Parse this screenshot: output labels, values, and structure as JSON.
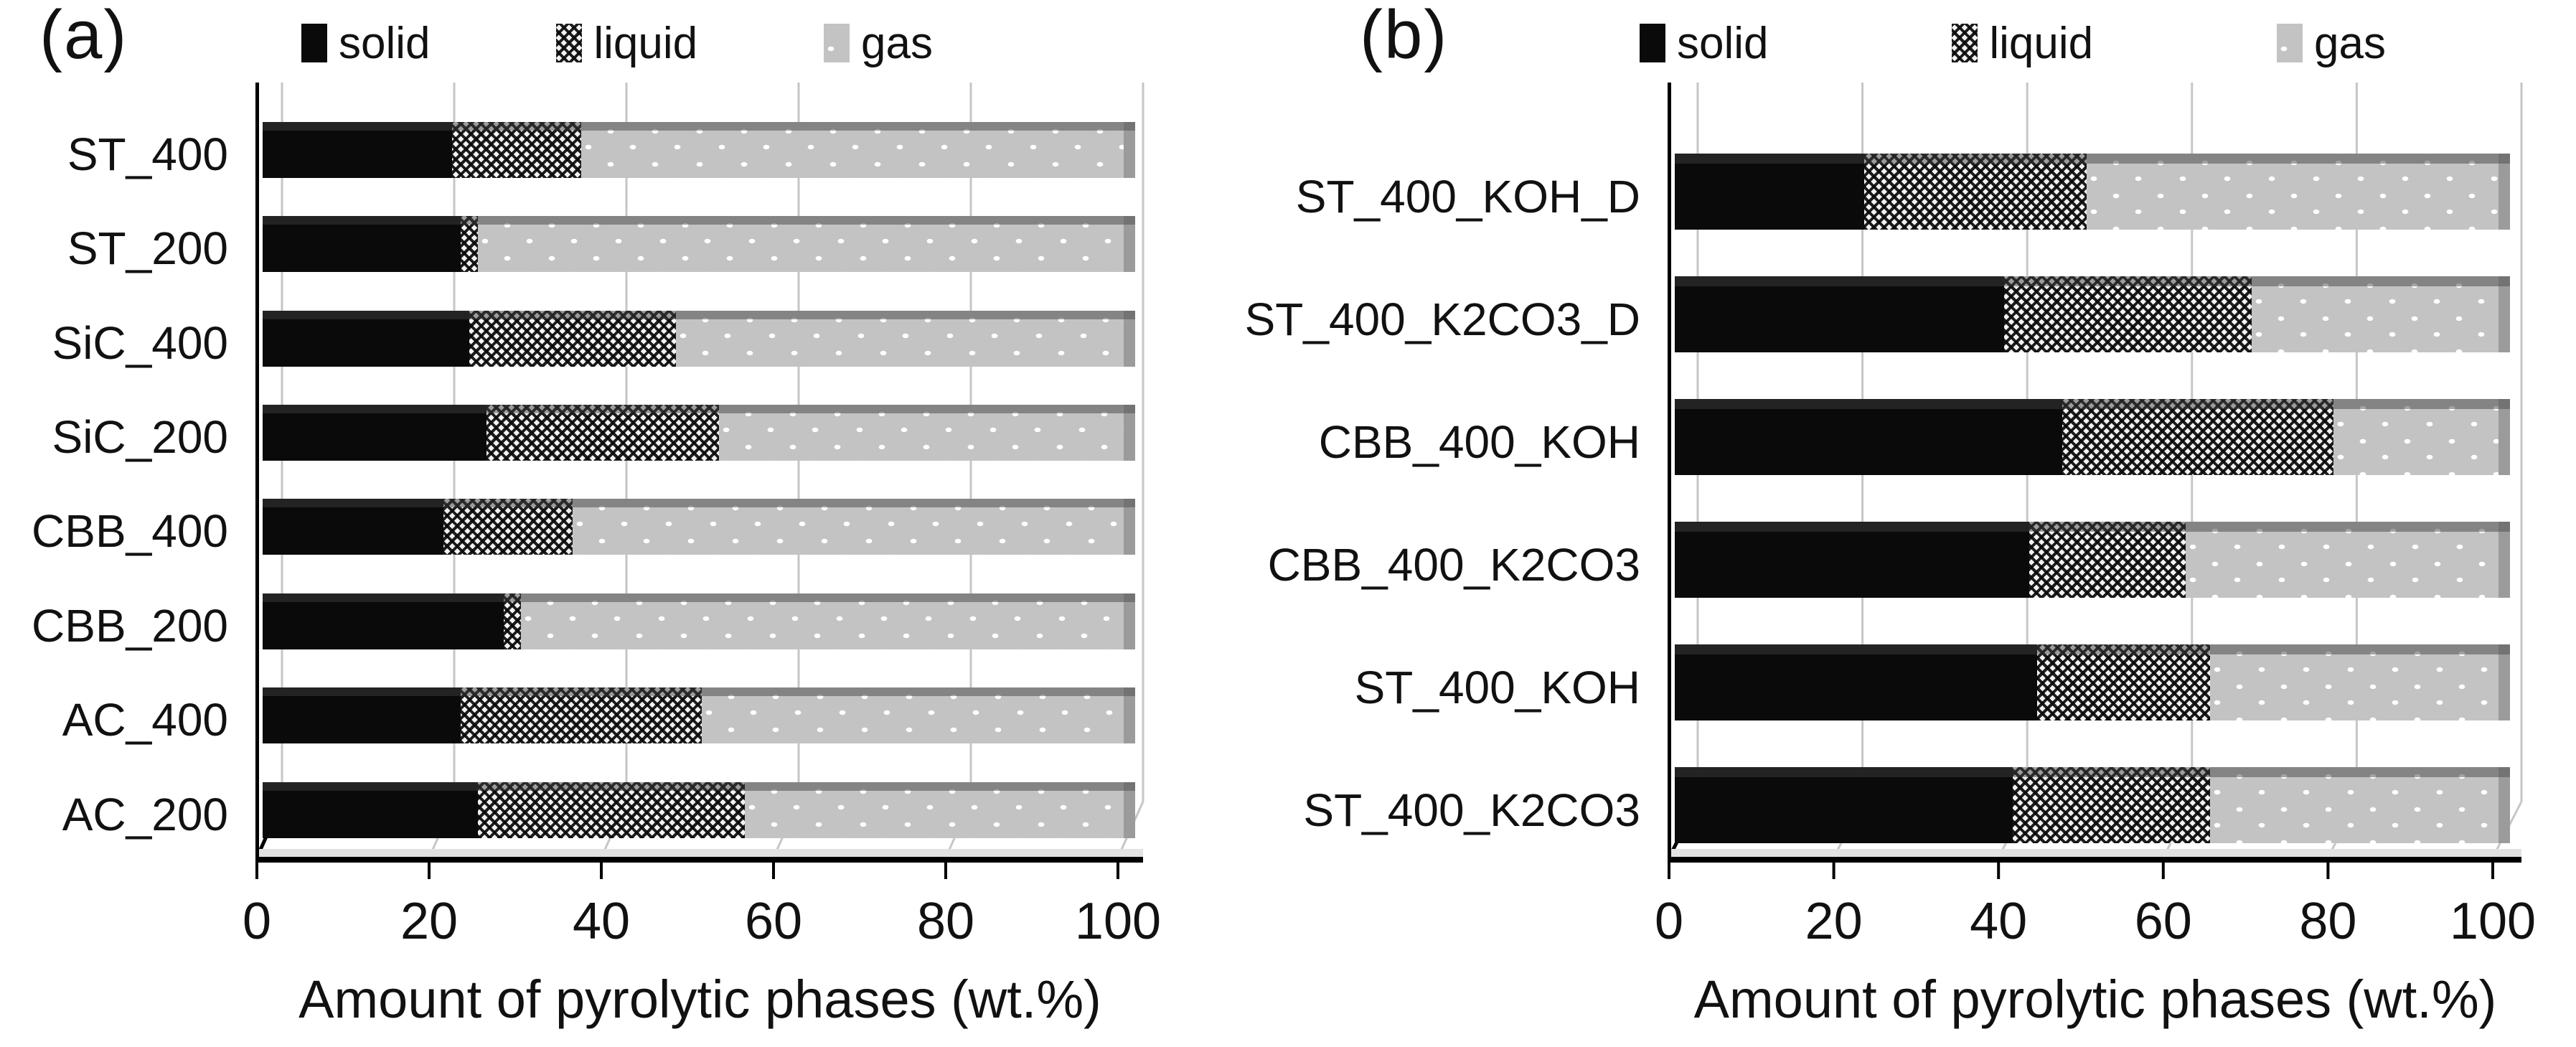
{
  "figure": {
    "background": "#ffffff",
    "font_color": "#111111"
  },
  "colors": {
    "solid_fill": "#0a0a0a",
    "gas_fill": "#c3c3c3",
    "gas_dot": "#ffffff",
    "liquid_pattern": "#0a0a0a on #ffffff diamond crosshatch",
    "gridline": "#c6c6c6",
    "axis": "#000000",
    "bar_end_cap": "#9b9b9b"
  },
  "chart_data": [
    {
      "type": "bar",
      "orientation": "horizontal-stacked",
      "panel_label": "(a)",
      "legend": [
        "solid",
        "liquid",
        "gas"
      ],
      "legend_position": "top",
      "grid": true,
      "xlim": [
        0,
        100
      ],
      "x_ticks": [
        "0",
        "20",
        "40",
        "60",
        "80",
        "100"
      ],
      "xlabel": "Amount of pyrolytic phases (wt.%)",
      "categories": [
        "ST_400",
        "ST_200",
        "SiC_400",
        "SiC_200",
        "CBB_400",
        "CBB_200",
        "AC_400",
        "AC_200"
      ],
      "series": [
        {
          "name": "solid",
          "values": [
            22,
            23,
            24,
            26,
            21,
            28,
            23,
            25
          ]
        },
        {
          "name": "liquid",
          "values": [
            15,
            2,
            24,
            27,
            15,
            2,
            28,
            31
          ]
        },
        {
          "name": "gas",
          "values": [
            63,
            75,
            52,
            47,
            64,
            70,
            49,
            44
          ]
        }
      ]
    },
    {
      "type": "bar",
      "orientation": "horizontal-stacked",
      "panel_label": "(b)",
      "legend": [
        "solid",
        "liquid",
        "gas"
      ],
      "legend_position": "top",
      "grid": true,
      "xlim": [
        0,
        100
      ],
      "x_ticks": [
        "0",
        "20",
        "40",
        "60",
        "80",
        "100"
      ],
      "xlabel": "Amount of pyrolytic phases (wt.%)",
      "categories": [
        "ST_400_KOH_D",
        "ST_400_K2CO3_D",
        "CBB_400_KOH",
        "CBB_400_K2CO3",
        "ST_400_KOH",
        "ST_400_K2CO3"
      ],
      "series": [
        {
          "name": "solid",
          "values": [
            23,
            40,
            47,
            43,
            44,
            41
          ]
        },
        {
          "name": "liquid",
          "values": [
            27,
            30,
            33,
            19,
            21,
            24
          ]
        },
        {
          "name": "gas",
          "values": [
            50,
            30,
            20,
            38,
            35,
            35
          ]
        }
      ]
    }
  ]
}
